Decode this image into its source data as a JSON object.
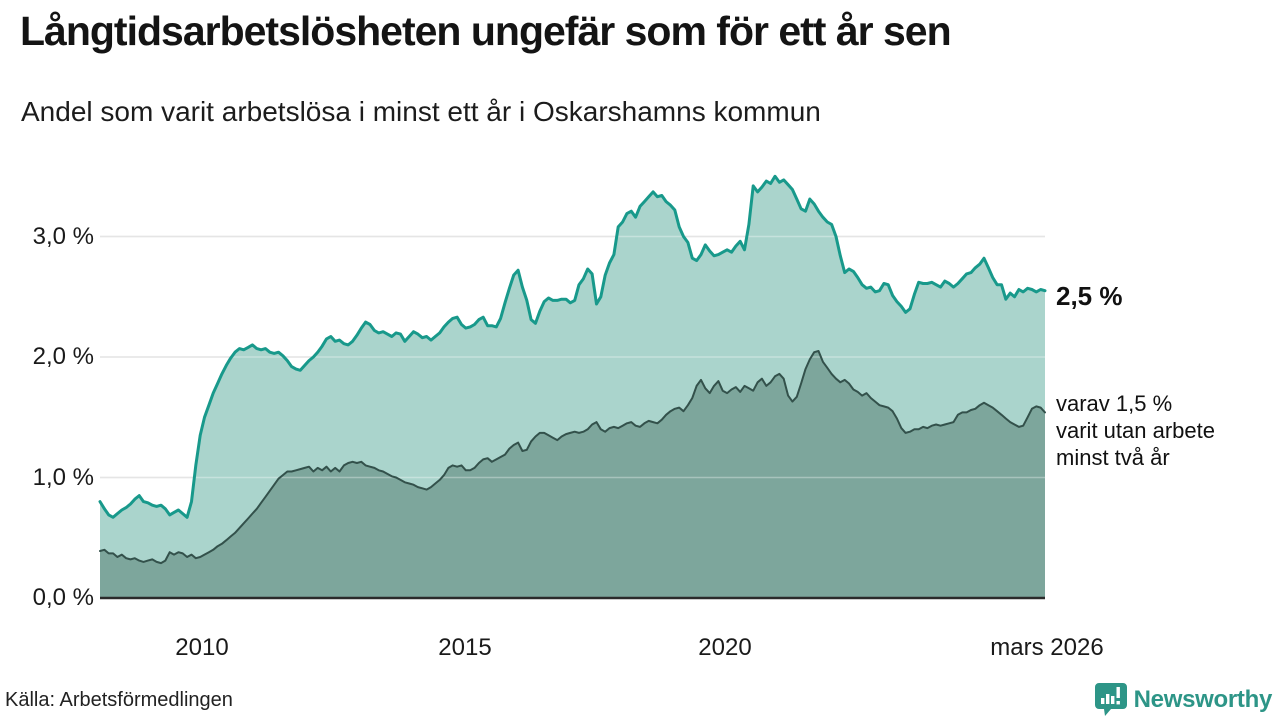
{
  "title": "Långtidsarbetslösheten ungefär som för ett år sen",
  "subtitle": "Andel som varit arbetslösa i minst ett år i Oskarshamns kommun",
  "source": "Källa: Arbetsförmedlingen",
  "logo": {
    "text": "Newsworthy",
    "color": "#2d9587",
    "icon": "bar-chart-speech-bubble"
  },
  "annotations": {
    "total_label": "2,5 %",
    "subset_lines": [
      "varav 1,5 %",
      "varit utan arbete",
      "minst två år"
    ]
  },
  "chart_data": {
    "type": "area",
    "title": "Långtidsarbetslösheten ungefär som för ett år sen",
    "subtitle": "Andel som varit arbetslösa i minst ett år i Oskarshamns kommun",
    "unit": "%",
    "frequency": "monthly",
    "x_start": "2008-02",
    "x_end": "2026-03",
    "ylim": [
      0,
      3.55
    ],
    "grid": "horizontal",
    "y_tick_labels": [
      "0,0 %",
      "1,0 %",
      "2,0 %",
      "3,0 %"
    ],
    "x_ticks": [
      {
        "label": "2010"
      },
      {
        "label": "2015"
      },
      {
        "label": "2020"
      },
      {
        "label": "mars 2026"
      }
    ],
    "colors": {
      "line_total": "#18998b",
      "fill_total": "#aad4cc",
      "line_subset": "#33514b",
      "fill_subset": "#7da69c",
      "gridline": "#d8d8d8",
      "baseline": "#2b2b2b"
    },
    "series": [
      {
        "name": "Andel arbetslösa minst ett år",
        "end_value_label": "2,5 %",
        "values": [
          0.8,
          0.74,
          0.69,
          0.67,
          0.7,
          0.73,
          0.75,
          0.78,
          0.82,
          0.85,
          0.8,
          0.79,
          0.77,
          0.76,
          0.77,
          0.74,
          0.69,
          0.71,
          0.73,
          0.7,
          0.67,
          0.8,
          1.1,
          1.35,
          1.5,
          1.6,
          1.7,
          1.78,
          1.86,
          1.93,
          1.99,
          2.04,
          2.07,
          2.06,
          2.08,
          2.1,
          2.07,
          2.06,
          2.07,
          2.04,
          2.03,
          2.04,
          2.01,
          1.97,
          1.92,
          1.9,
          1.89,
          1.93,
          1.97,
          2.0,
          2.04,
          2.09,
          2.15,
          2.17,
          2.13,
          2.14,
          2.11,
          2.1,
          2.13,
          2.18,
          2.24,
          2.29,
          2.27,
          2.22,
          2.2,
          2.21,
          2.19,
          2.17,
          2.2,
          2.19,
          2.13,
          2.17,
          2.21,
          2.19,
          2.16,
          2.17,
          2.14,
          2.17,
          2.2,
          2.25,
          2.29,
          2.32,
          2.33,
          2.27,
          2.24,
          2.25,
          2.27,
          2.31,
          2.33,
          2.26,
          2.26,
          2.25,
          2.32,
          2.45,
          2.57,
          2.68,
          2.72,
          2.58,
          2.47,
          2.31,
          2.28,
          2.38,
          2.46,
          2.49,
          2.47,
          2.47,
          2.48,
          2.48,
          2.45,
          2.47,
          2.6,
          2.65,
          2.73,
          2.69,
          2.44,
          2.5,
          2.68,
          2.78,
          2.85,
          3.08,
          3.12,
          3.19,
          3.21,
          3.16,
          3.25,
          3.29,
          3.33,
          3.37,
          3.33,
          3.34,
          3.29,
          3.26,
          3.22,
          3.08,
          3.0,
          2.95,
          2.82,
          2.8,
          2.85,
          2.93,
          2.88,
          2.84,
          2.85,
          2.87,
          2.89,
          2.87,
          2.92,
          2.96,
          2.89,
          3.1,
          3.42,
          3.37,
          3.41,
          3.46,
          3.44,
          3.5,
          3.45,
          3.47,
          3.43,
          3.39,
          3.31,
          3.23,
          3.21,
          3.31,
          3.27,
          3.21,
          3.16,
          3.12,
          3.1,
          3.0,
          2.84,
          2.7,
          2.73,
          2.71,
          2.66,
          2.6,
          2.57,
          2.58,
          2.54,
          2.55,
          2.61,
          2.6,
          2.51,
          2.46,
          2.42,
          2.37,
          2.4,
          2.52,
          2.62,
          2.61,
          2.61,
          2.62,
          2.6,
          2.58,
          2.63,
          2.61,
          2.58,
          2.61,
          2.65,
          2.69,
          2.7,
          2.74,
          2.77,
          2.82,
          2.74,
          2.66,
          2.6,
          2.6,
          2.48,
          2.53,
          2.5,
          2.56,
          2.54,
          2.57,
          2.56,
          2.54,
          2.56,
          2.55
        ]
      },
      {
        "name": "varav utan arbete minst två år",
        "end_value_label": "1,5 %",
        "values": [
          0.39,
          0.4,
          0.37,
          0.37,
          0.34,
          0.36,
          0.33,
          0.32,
          0.33,
          0.31,
          0.3,
          0.31,
          0.32,
          0.3,
          0.29,
          0.31,
          0.38,
          0.36,
          0.38,
          0.37,
          0.34,
          0.36,
          0.33,
          0.34,
          0.36,
          0.38,
          0.4,
          0.43,
          0.45,
          0.48,
          0.51,
          0.54,
          0.58,
          0.62,
          0.66,
          0.7,
          0.74,
          0.79,
          0.84,
          0.89,
          0.94,
          0.99,
          1.02,
          1.05,
          1.05,
          1.06,
          1.07,
          1.08,
          1.09,
          1.05,
          1.08,
          1.06,
          1.09,
          1.05,
          1.08,
          1.05,
          1.1,
          1.12,
          1.13,
          1.12,
          1.13,
          1.1,
          1.09,
          1.08,
          1.06,
          1.05,
          1.03,
          1.01,
          1.0,
          0.98,
          0.96,
          0.95,
          0.94,
          0.92,
          0.91,
          0.9,
          0.92,
          0.95,
          0.98,
          1.02,
          1.08,
          1.1,
          1.09,
          1.1,
          1.06,
          1.06,
          1.08,
          1.12,
          1.15,
          1.16,
          1.13,
          1.15,
          1.17,
          1.19,
          1.24,
          1.27,
          1.29,
          1.22,
          1.23,
          1.3,
          1.34,
          1.37,
          1.37,
          1.35,
          1.33,
          1.31,
          1.34,
          1.36,
          1.37,
          1.38,
          1.37,
          1.38,
          1.4,
          1.44,
          1.46,
          1.4,
          1.38,
          1.41,
          1.42,
          1.41,
          1.43,
          1.45,
          1.46,
          1.43,
          1.42,
          1.45,
          1.47,
          1.46,
          1.45,
          1.48,
          1.52,
          1.55,
          1.57,
          1.58,
          1.55,
          1.6,
          1.66,
          1.76,
          1.81,
          1.74,
          1.7,
          1.76,
          1.8,
          1.72,
          1.7,
          1.73,
          1.75,
          1.71,
          1.76,
          1.74,
          1.72,
          1.79,
          1.82,
          1.76,
          1.79,
          1.84,
          1.86,
          1.82,
          1.68,
          1.63,
          1.67,
          1.78,
          1.9,
          1.98,
          2.04,
          2.05,
          1.96,
          1.91,
          1.86,
          1.82,
          1.79,
          1.81,
          1.78,
          1.73,
          1.71,
          1.68,
          1.7,
          1.66,
          1.63,
          1.6,
          1.59,
          1.58,
          1.55,
          1.49,
          1.41,
          1.37,
          1.38,
          1.4,
          1.4,
          1.42,
          1.41,
          1.43,
          1.44,
          1.43,
          1.44,
          1.45,
          1.46,
          1.52,
          1.54,
          1.54,
          1.56,
          1.57,
          1.6,
          1.62,
          1.6,
          1.58,
          1.55,
          1.52,
          1.49,
          1.46,
          1.44,
          1.42,
          1.43,
          1.5,
          1.57,
          1.59,
          1.58,
          1.54
        ]
      }
    ]
  }
}
